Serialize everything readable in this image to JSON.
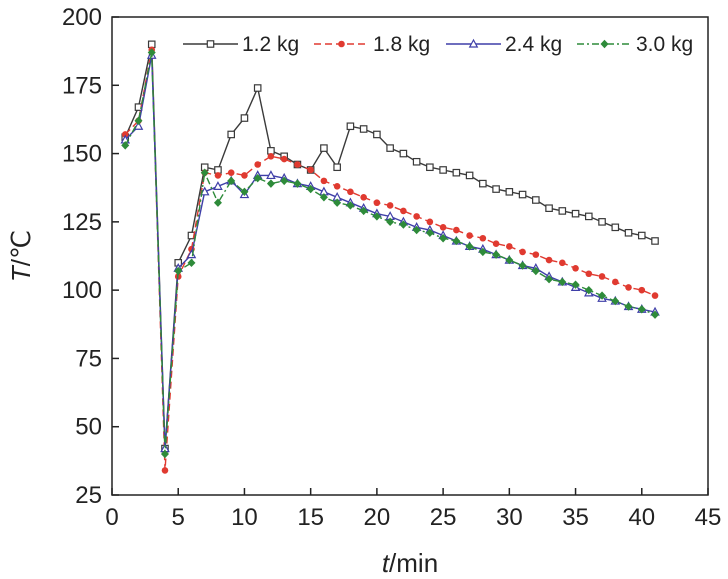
{
  "chart_data": {
    "type": "line",
    "title": "",
    "xlabel_italic": "t",
    "xlabel_unit": "/min",
    "ylabel_italic": "T",
    "ylabel_unit": "/℃",
    "xlim": [
      0,
      45
    ],
    "ylim": [
      25,
      200
    ],
    "xticks": [
      0,
      5,
      10,
      15,
      20,
      25,
      30,
      35,
      40,
      45
    ],
    "yticks": [
      25,
      50,
      75,
      100,
      125,
      150,
      175,
      200
    ],
    "grid": false,
    "legend_position": "top",
    "x": [
      1,
      2,
      3,
      4,
      5,
      6,
      7,
      8,
      9,
      10,
      11,
      12,
      13,
      14,
      15,
      16,
      17,
      18,
      19,
      20,
      21,
      22,
      23,
      24,
      25,
      26,
      27,
      28,
      29,
      30,
      31,
      32,
      33,
      34,
      35,
      36,
      37,
      38,
      39,
      40,
      41
    ],
    "series": [
      {
        "name": "1.2 kg",
        "color": "#3a3a3a",
        "marker": "square-open",
        "dash": "solid",
        "values": [
          156,
          167,
          190,
          42,
          110,
          120,
          145,
          144,
          157,
          163,
          174,
          151,
          149,
          146,
          144,
          152,
          145,
          160,
          159,
          157,
          152,
          150,
          147,
          145,
          144,
          143,
          142,
          139,
          137,
          136,
          135,
          133,
          130,
          129,
          128,
          127,
          125,
          123,
          121,
          120,
          118
        ]
      },
      {
        "name": "1.8 kg",
        "color": "#e03a30",
        "marker": "circle-filled",
        "dash": "dashed",
        "values": [
          157,
          162,
          188,
          34,
          105,
          115,
          143,
          142,
          143,
          142,
          146,
          149,
          148,
          146,
          144,
          140,
          138,
          136,
          134,
          132,
          131,
          129,
          127,
          125,
          123,
          122,
          120,
          119,
          117,
          116,
          114,
          113,
          111,
          110,
          108,
          106,
          105,
          103,
          101,
          100,
          98
        ]
      },
      {
        "name": "2.4 kg",
        "color": "#3f3fa8",
        "marker": "triangle-open",
        "dash": "solid",
        "values": [
          155,
          160,
          186,
          42,
          108,
          113,
          136,
          138,
          140,
          135,
          142,
          142,
          141,
          139,
          138,
          136,
          134,
          132,
          130,
          128,
          127,
          125,
          123,
          122,
          120,
          118,
          116,
          115,
          113,
          111,
          109,
          108,
          105,
          103,
          101,
          99,
          97,
          96,
          94,
          93,
          92
        ]
      },
      {
        "name": "3.0 kg",
        "color": "#2e8b3a",
        "marker": "diamond-filled",
        "dash": "dashdot",
        "values": [
          153,
          162,
          187,
          40,
          107,
          110,
          143,
          132,
          140,
          136,
          141,
          139,
          140,
          139,
          137,
          134,
          132,
          131,
          129,
          127,
          125,
          124,
          122,
          121,
          119,
          118,
          116,
          114,
          113,
          111,
          109,
          107,
          104,
          103,
          102,
          100,
          98,
          96,
          94,
          93,
          91
        ]
      }
    ]
  }
}
